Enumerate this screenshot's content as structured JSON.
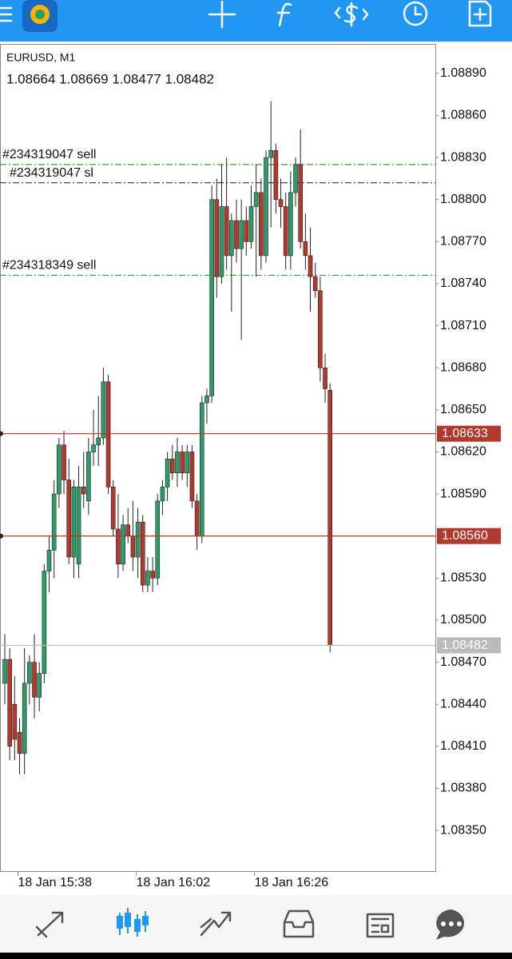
{
  "chart_data": {
    "type": "candlestick",
    "title": "EURUSD, M1",
    "subtitle": "1.08664 1.08669 1.08477 1.08482",
    "categories": [
      null,
      null,
      null,
      "18 Jan 15:38",
      null,
      null,
      null,
      null,
      null,
      null,
      null,
      null,
      null,
      null,
      null,
      null,
      null,
      null,
      null,
      null,
      null,
      null,
      null,
      null,
      null,
      null,
      null,
      "18 Jan 16:02",
      null,
      null,
      null,
      null,
      null,
      null,
      null,
      null,
      null,
      null,
      null,
      null,
      null,
      null,
      null,
      null,
      null,
      null,
      null,
      null,
      null,
      null,
      null,
      "18 Jan 16:26",
      null,
      null,
      null,
      null,
      null,
      null,
      null,
      null,
      null,
      null,
      null,
      null,
      null,
      null,
      null
    ],
    "open": [
      1.08455,
      1.08472,
      1.0844,
      1.0842,
      1.08405,
      1.08455,
      1.0847,
      1.08445,
      1.08462,
      1.08535,
      1.0855,
      1.0859,
      1.08625,
      1.086,
      1.08545,
      1.0854,
      1.08595,
      1.08585,
      1.0862,
      1.08625,
      1.0863,
      1.0867,
      1.08595,
      1.08565,
      1.0854,
      1.08568,
      1.0856,
      1.08545,
      1.0857,
      1.08525,
      1.08535,
      1.0853,
      1.08585,
      1.08595,
      1.08615,
      1.08605,
      1.0862,
      1.08605,
      1.0862,
      1.08585,
      1.0856,
      1.08655,
      1.0866,
      1.088,
      1.08745,
      1.08795,
      1.0876,
      1.08785,
      1.08765,
      1.08785,
      1.0877,
      1.08795,
      1.08805,
      1.0876,
      1.0883,
      1.08835,
      1.088,
      1.08795,
      1.0876,
      1.08805,
      1.08825,
      1.0877,
      1.0876,
      1.08745,
      1.08735,
      1.0868,
      1.08664
    ],
    "high": [
      1.0849,
      1.0848,
      1.0846,
      1.0843,
      1.0848,
      1.08475,
      1.0849,
      1.0847,
      1.0854,
      1.0856,
      1.086,
      1.0863,
      1.08635,
      1.08615,
      1.086,
      1.0861,
      1.0862,
      1.0863,
      1.0865,
      1.0866,
      1.0868,
      1.08675,
      1.086,
      1.0859,
      1.08575,
      1.0858,
      1.08585,
      1.0858,
      1.08575,
      1.08545,
      1.08545,
      1.0859,
      1.086,
      1.0862,
      1.08625,
      1.0863,
      1.08625,
      1.08625,
      1.08625,
      1.0859,
      1.0866,
      1.08665,
      1.0881,
      1.08815,
      1.08825,
      1.0883,
      1.0879,
      1.088,
      1.088,
      1.08795,
      1.0881,
      1.08825,
      1.08815,
      1.08835,
      1.0887,
      1.0884,
      1.08815,
      1.08805,
      1.0882,
      1.0883,
      1.0885,
      1.0879,
      1.0878,
      1.08755,
      1.08745,
      1.0869,
      1.08669
    ],
    "low": [
      1.0844,
      1.084,
      1.084,
      1.0839,
      1.0839,
      1.0844,
      1.0843,
      1.08435,
      1.08455,
      1.0852,
      1.0853,
      1.0858,
      1.0859,
      1.0854,
      1.0853,
      1.0853,
      1.0858,
      1.08575,
      1.0861,
      1.0861,
      1.08625,
      1.0859,
      1.0856,
      1.0853,
      1.08535,
      1.08555,
      1.08535,
      1.0853,
      1.0852,
      1.0852,
      1.0852,
      1.08525,
      1.08575,
      1.08585,
      1.086,
      1.08595,
      1.086,
      1.08595,
      1.0858,
      1.0855,
      1.08555,
      1.0864,
      1.08655,
      1.0873,
      1.0874,
      1.0875,
      1.0872,
      1.08755,
      1.087,
      1.0876,
      1.08765,
      1.08745,
      1.0875,
      1.08755,
      1.0878,
      1.0879,
      1.0878,
      1.0875,
      1.0875,
      1.08795,
      1.08765,
      1.0875,
      1.0872,
      1.0873,
      1.0867,
      1.08655,
      1.08477
    ],
    "close": [
      1.08472,
      1.0841,
      1.08415,
      1.08405,
      1.08455,
      1.0847,
      1.08445,
      1.08462,
      1.08535,
      1.0855,
      1.0859,
      1.08625,
      1.086,
      1.08545,
      1.08595,
      1.08595,
      1.0859,
      1.0862,
      1.08625,
      1.0863,
      1.0867,
      1.08595,
      1.08565,
      1.0854,
      1.08568,
      1.0856,
      1.08545,
      1.0857,
      1.08525,
      1.08535,
      1.0853,
      1.08585,
      1.08595,
      1.08615,
      1.08605,
      1.0862,
      1.08605,
      1.0862,
      1.08585,
      1.0856,
      1.08655,
      1.0866,
      1.088,
      1.08745,
      1.08795,
      1.0876,
      1.08785,
      1.08765,
      1.08785,
      1.0877,
      1.08795,
      1.08805,
      1.0876,
      1.0883,
      1.08835,
      1.088,
      1.08795,
      1.0876,
      1.08805,
      1.08825,
      1.0877,
      1.0876,
      1.08745,
      1.08735,
      1.0868,
      1.08665,
      1.08482
    ],
    "up_color": "#2e9c68",
    "down_color": "#b3392c",
    "ylim": [
      1.08321,
      1.08911
    ],
    "yticks": [
      {
        "value": 1.0889,
        "label": "1.08890"
      },
      {
        "value": 1.0886,
        "label": "1.08860"
      },
      {
        "value": 1.0883,
        "label": "1.08830"
      },
      {
        "value": 1.088,
        "label": "1.08800"
      },
      {
        "value": 1.0877,
        "label": "1.08770"
      },
      {
        "value": 1.0874,
        "label": "1.08740"
      },
      {
        "value": 1.0871,
        "label": "1.08710"
      },
      {
        "value": 1.0868,
        "label": "1.08680"
      },
      {
        "value": 1.0865,
        "label": "1.08650"
      },
      {
        "value": 1.0862,
        "label": "1.08620"
      },
      {
        "value": 1.0859,
        "label": "1.08590"
      },
      {
        "value": 1.0856,
        "label": "1.08560"
      },
      {
        "value": 1.0853,
        "label": "1.08530"
      },
      {
        "value": 1.085,
        "label": "1.08500"
      },
      {
        "value": 1.0847,
        "label": "1.08470"
      },
      {
        "value": 1.0844,
        "label": "1.08440"
      },
      {
        "value": 1.0841,
        "label": "1.08410"
      },
      {
        "value": 1.0838,
        "label": "1.08380"
      },
      {
        "value": 1.0835,
        "label": "1.08350"
      }
    ],
    "order_lines": [
      {
        "label": "#234319047 sell",
        "value": 1.08825,
        "color": "#3f9a3f"
      },
      {
        "label": "#234319047 sl",
        "value": 1.08812,
        "color": "#333333"
      },
      {
        "label": "#234318349 sell",
        "value": 1.08746,
        "color": "#3f9a3f"
      }
    ],
    "price_lines": [
      {
        "value": 1.08633,
        "label": "1.08633",
        "color": "#b3392c"
      },
      {
        "value": 1.0856,
        "label": "1.08560",
        "color": "#b3392c"
      },
      {
        "value": 1.08482,
        "label": "1.08482",
        "color": "#bbbbbb"
      }
    ]
  }
}
